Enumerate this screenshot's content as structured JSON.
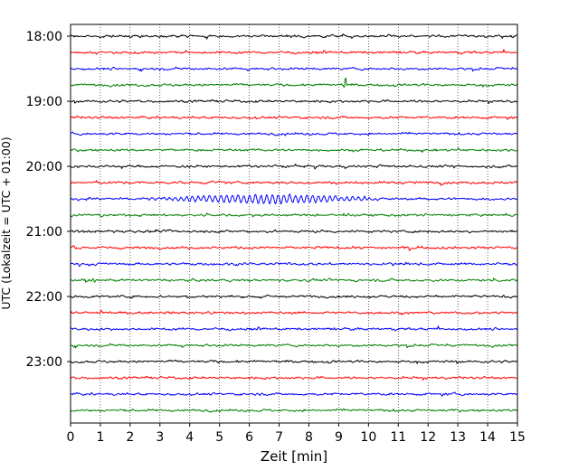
{
  "chart_data": {
    "type": "line",
    "title": "",
    "xlabel": "Zeit  [min]",
    "ylabel": "UTC (Lokalzeit = UTC + 01:00)",
    "xlim": [
      0,
      15
    ],
    "x_ticks": [
      0,
      1,
      2,
      3,
      4,
      5,
      6,
      7,
      8,
      9,
      10,
      11,
      12,
      13,
      14,
      15
    ],
    "x_tick_labels": [
      "0",
      "1",
      "2",
      "3",
      "4",
      "5",
      "6",
      "7",
      "8",
      "9",
      "10",
      "11",
      "12",
      "13",
      "14",
      "15"
    ],
    "y_tick_labels": [
      "18:00",
      "19:00",
      "20:00",
      "21:00",
      "22:00",
      "23:00"
    ],
    "grid": "vertical dotted at each minute",
    "trace_colors": [
      "#000000",
      "#ff0000",
      "#0000ff",
      "#008000"
    ],
    "trace_start_times": [
      "18:00",
      "18:15",
      "18:30",
      "18:45",
      "19:00",
      "19:15",
      "19:30",
      "19:45",
      "20:00",
      "20:15",
      "20:30",
      "20:45",
      "21:00",
      "21:15",
      "21:30",
      "21:45",
      "22:00",
      "22:15",
      "22:30",
      "22:45",
      "23:00",
      "23:15",
      "23:30",
      "23:45"
    ],
    "trace_minutes_per_line": 15,
    "notable_events": [
      {
        "trace_start": "18:45",
        "color": "#008000",
        "x_min": 9.2,
        "description": "spike"
      },
      {
        "trace_start": "20:30",
        "color": "#0000ff",
        "x_min_start": 2.5,
        "x_min_end": 10.5,
        "description": "larger oscillations"
      }
    ]
  }
}
